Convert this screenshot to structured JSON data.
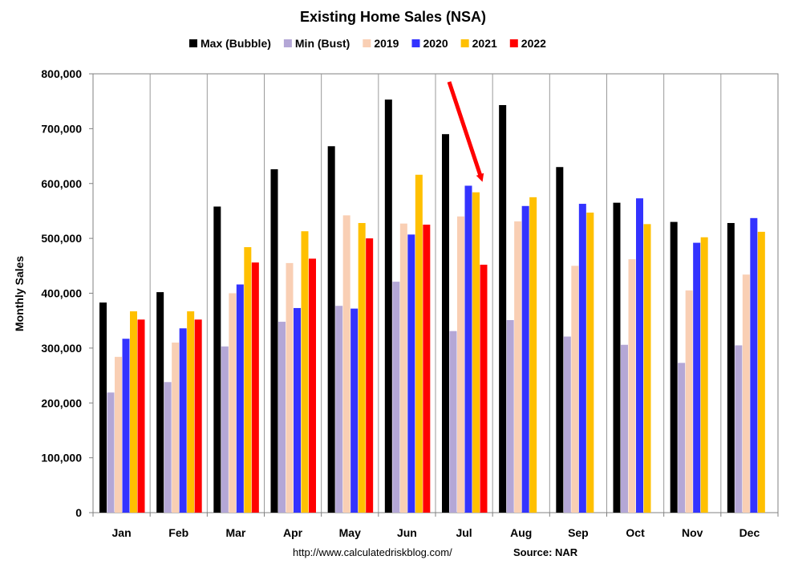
{
  "chart_data": {
    "type": "bar",
    "title": "Existing Home Sales (NSA)",
    "xlabel": "",
    "ylabel": "Monthly Sales",
    "ylim": [
      0,
      800000
    ],
    "yticks": [
      "0",
      "100,000",
      "200,000",
      "300,000",
      "400,000",
      "500,000",
      "600,000",
      "700,000",
      "800,000"
    ],
    "categories": [
      "Jan",
      "Feb",
      "Mar",
      "Apr",
      "May",
      "Jun",
      "Jul",
      "Aug",
      "Sep",
      "Oct",
      "Nov",
      "Dec"
    ],
    "legend_position": "top",
    "grid": "vertical category separators",
    "series": [
      {
        "name": "Max (Bubble)",
        "color": "#000000",
        "values": [
          383000,
          402000,
          558000,
          626000,
          668000,
          753000,
          690000,
          743000,
          630000,
          565000,
          530000,
          528000
        ]
      },
      {
        "name": "Min (Bust)",
        "color": "#b4a7d6",
        "values": [
          219000,
          238000,
          303000,
          348000,
          377000,
          421000,
          331000,
          351000,
          321000,
          306000,
          273000,
          305000
        ]
      },
      {
        "name": "2019",
        "color": "#f9cfb4",
        "values": [
          284000,
          310000,
          400000,
          455000,
          542000,
          527000,
          540000,
          531000,
          450000,
          462000,
          405000,
          434000
        ]
      },
      {
        "name": "2020",
        "color": "#3333ff",
        "values": [
          317000,
          336000,
          416000,
          373000,
          372000,
          507000,
          596000,
          559000,
          563000,
          573000,
          492000,
          537000
        ]
      },
      {
        "name": "2021",
        "color": "#ffc000",
        "values": [
          367000,
          367000,
          484000,
          513000,
          528000,
          616000,
          584000,
          575000,
          547000,
          526000,
          502000,
          512000
        ]
      },
      {
        "name": "2022",
        "color": "#ff0000",
        "values": [
          352000,
          352000,
          456000,
          463000,
          500000,
          525000,
          452000,
          null,
          null,
          null,
          null,
          null
        ]
      }
    ],
    "annotations": [
      {
        "type": "arrow",
        "color": "#ff0000",
        "points_to": "Jul 2022"
      }
    ]
  },
  "footer": {
    "url": "http://www.calculatedriskblog.com/",
    "source": "Source: NAR"
  }
}
